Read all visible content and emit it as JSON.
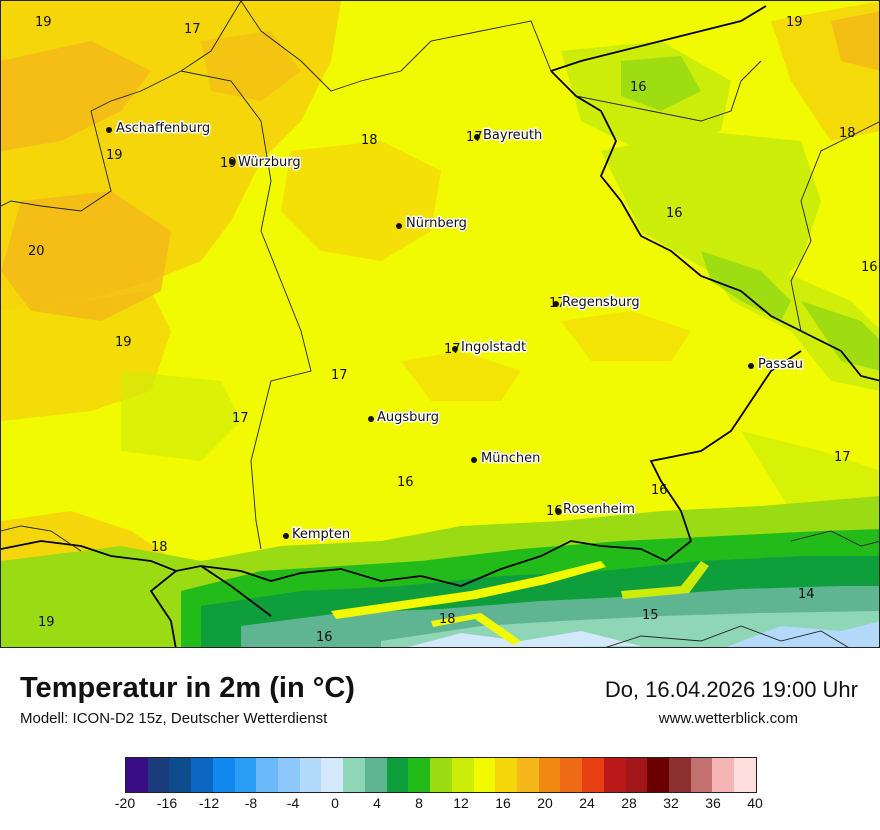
{
  "title": "Temperatur in 2m (in °C)",
  "subtitle": "Modell: ICON-D2 15z, Deutscher Wetterdienst",
  "datetime": "Do, 16.04.2026 19:00 Uhr",
  "website": "www.wetterblick.com",
  "cities": [
    {
      "name": "Aschaffenburg"
    },
    {
      "name": "Würzburg"
    },
    {
      "name": "Bayreuth"
    },
    {
      "name": "Nürnberg"
    },
    {
      "name": "Regensburg"
    },
    {
      "name": "Ingolstadt"
    },
    {
      "name": "Passau"
    },
    {
      "name": "Augsburg"
    },
    {
      "name": "München"
    },
    {
      "name": "Rosenheim"
    },
    {
      "name": "Kempten"
    }
  ],
  "temperature_labels": [
    "19",
    "17",
    "19",
    "18",
    "17",
    "18",
    "19",
    "19",
    "20",
    "19",
    "16",
    "17",
    "17",
    "16",
    "17",
    "17",
    "16",
    "16",
    "17",
    "18",
    "19",
    "16",
    "18",
    "15",
    "14"
  ],
  "legend": {
    "colors": [
      "#3a0d85",
      "#1a3a7a",
      "#0d4c8c",
      "#0a66c2",
      "#1188ee",
      "#2a9ef5",
      "#6bb8f7",
      "#8ec8fa",
      "#b3d9fb",
      "#d4e8fc",
      "#8fd6b6",
      "#5fb592",
      "#0f9e3c",
      "#22bb1a",
      "#9adb14",
      "#ccec0a",
      "#f2fa00",
      "#f4d60a",
      "#f4b81a",
      "#f08812",
      "#ee6a16",
      "#e53f12",
      "#b81818",
      "#a11618",
      "#6b0000",
      "#8c3030",
      "#c27070",
      "#f4b4b4",
      "#ffdede"
    ],
    "ticks": [
      "-20",
      "-16",
      "-12",
      "-8",
      "-4",
      "0",
      "4",
      "8",
      "12",
      "16",
      "20",
      "24",
      "28",
      "32",
      "36",
      "40"
    ]
  }
}
